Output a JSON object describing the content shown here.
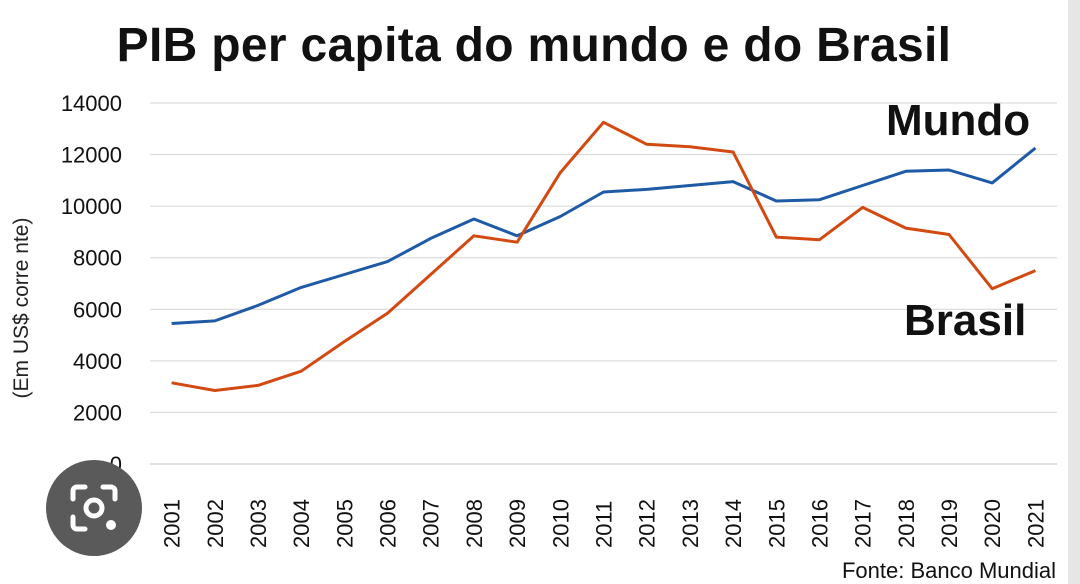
{
  "title": "PIB per capita do mundo e do Brasil",
  "ylabel": "(Em US$ corre nte)",
  "source": "Fonte: Banco Mundial",
  "series_labels": {
    "mundo": "Mundo",
    "brasil": "Brasil"
  },
  "colors": {
    "mundo": "#1f5aa6",
    "brasil": "#d24a12",
    "grid": "#d6d6d6"
  },
  "lens_button": {
    "icon": "camera-search-icon"
  },
  "chart_data": {
    "type": "line",
    "x": [
      2001,
      2002,
      2003,
      2004,
      2005,
      2006,
      2007,
      2008,
      2009,
      2010,
      2011,
      2012,
      2013,
      2014,
      2015,
      2016,
      2017,
      2018,
      2019,
      2020,
      2021
    ],
    "series": [
      {
        "name": "Mundo",
        "color": "#1f5aa6",
        "values": [
          5450,
          5550,
          6150,
          6850,
          7350,
          7850,
          8750,
          9500,
          8850,
          9600,
          10550,
          10650,
          10800,
          10950,
          10200,
          10250,
          10800,
          11350,
          11400,
          10900,
          12250
        ]
      },
      {
        "name": "Brasil",
        "color": "#d24a12",
        "values": [
          3150,
          2850,
          3050,
          3600,
          4750,
          5850,
          7350,
          8850,
          8600,
          11300,
          13250,
          12400,
          12300,
          12100,
          8800,
          8700,
          9950,
          9150,
          8900,
          6800,
          7500
        ]
      }
    ],
    "yticks": [
      0,
      2000,
      4000,
      6000,
      8000,
      10000,
      12000,
      14000
    ],
    "ylim": [
      0,
      14000
    ],
    "xlabel": "",
    "ylabel": "(Em US$ corre nte)",
    "grid": "horizontal",
    "legend": "direct labels"
  }
}
